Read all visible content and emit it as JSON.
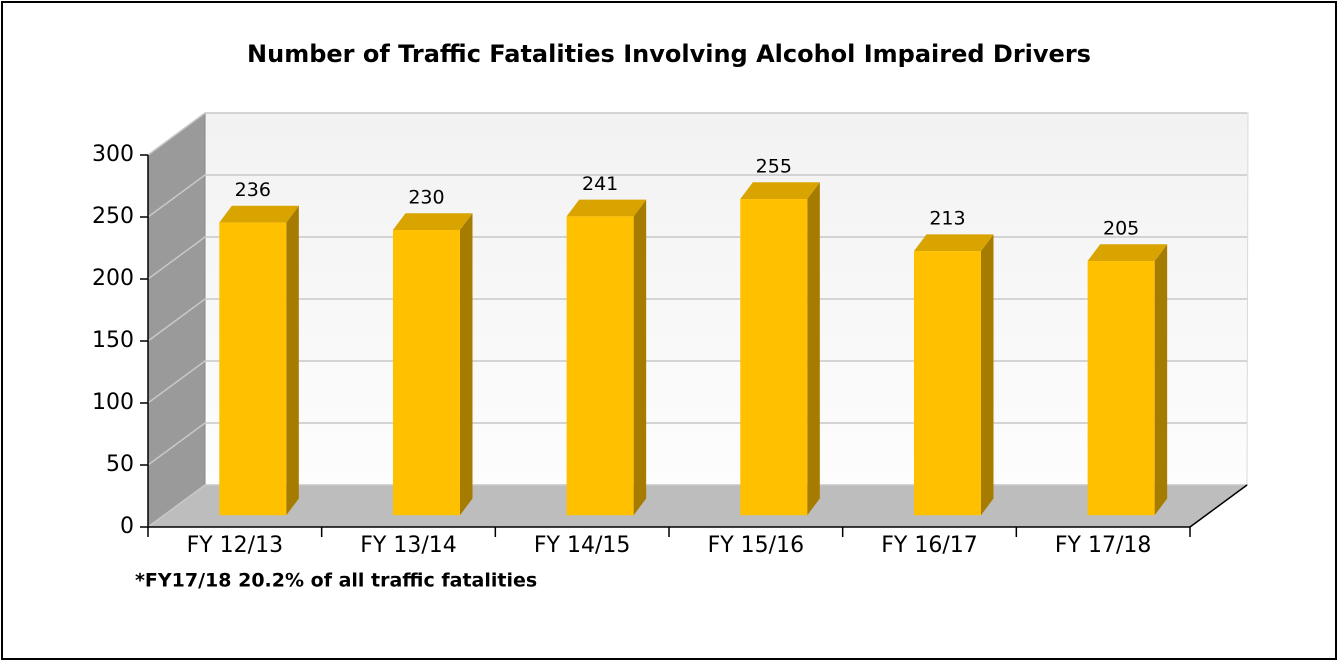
{
  "chart_data": {
    "type": "bar3d",
    "title": "Number of Traffic Fatalities Involving Alcohol Impaired Drivers",
    "categories": [
      "FY 12/13",
      "FY 13/14",
      "FY 14/15",
      "FY 15/16",
      "FY 16/17",
      "FY 17/18"
    ],
    "values": [
      236,
      230,
      241,
      255,
      213,
      205
    ],
    "color": "#ffc000",
    "ylim": [
      0,
      300
    ],
    "yticks": [
      0,
      50,
      100,
      150,
      200,
      250,
      300
    ],
    "grid": true,
    "annotation": "*FY17/18 20.2% of all traffic fatalities"
  }
}
